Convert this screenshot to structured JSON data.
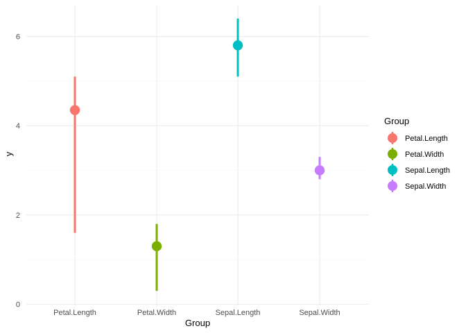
{
  "chart_data": {
    "type": "pointrange",
    "title": "",
    "xlabel": "Group",
    "ylabel": "y",
    "categories": [
      "Petal.Length",
      "Petal.Width",
      "Sepal.Length",
      "Sepal.Width"
    ],
    "points": [
      {
        "group": "Petal.Length",
        "y": 4.35,
        "ymin": 1.6,
        "ymax": 5.1
      },
      {
        "group": "Petal.Width",
        "y": 1.3,
        "ymin": 0.3,
        "ymax": 1.8
      },
      {
        "group": "Sepal.Length",
        "y": 5.8,
        "ymin": 5.1,
        "ymax": 6.4
      },
      {
        "group": "Sepal.Width",
        "y": 3.0,
        "ymin": 2.8,
        "ymax": 3.3
      }
    ],
    "ylim": [
      0,
      6.6
    ],
    "yticks": [
      0,
      2,
      4,
      6
    ],
    "grid": true,
    "legend": {
      "title": "Group",
      "placement": "right",
      "entries": [
        "Petal.Length",
        "Petal.Width",
        "Sepal.Length",
        "Sepal.Width"
      ]
    },
    "colors": {
      "Petal.Length": "#F8766D",
      "Petal.Width": "#7CAE00",
      "Sepal.Length": "#00BFC4",
      "Sepal.Width": "#C77CFF"
    }
  }
}
